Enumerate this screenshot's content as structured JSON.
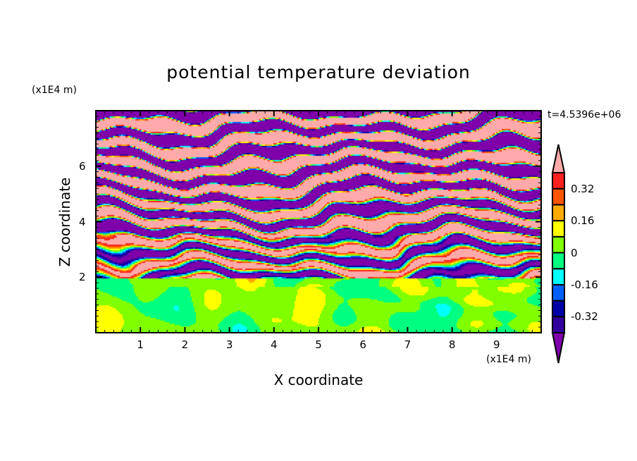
{
  "chart_data": {
    "type": "heatmap",
    "title": "potential temperature deviation",
    "xlabel": "X coordinate",
    "ylabel": "Z coordinate",
    "x_unit": "(x1E4 m)",
    "z_unit": "(x1E4 m)",
    "time_label": "t=4.5396e+06",
    "xlim": [
      0,
      10
    ],
    "ylim": [
      0,
      8
    ],
    "xticks": [
      "1",
      "2",
      "3",
      "4",
      "5",
      "6",
      "7",
      "8",
      "9"
    ],
    "yticks": [
      "2",
      "4",
      "6"
    ],
    "colorbar": {
      "levels": [
        -0.4,
        -0.32,
        -0.24,
        -0.16,
        -0.08,
        0,
        0.08,
        0.16,
        0.24,
        0.32,
        0.4
      ],
      "labels": [
        "0.32",
        "0.16",
        "0",
        "-0.16",
        "-0.32"
      ],
      "label_values": [
        0.32,
        0.16,
        0,
        -0.16,
        -0.32
      ],
      "colors": [
        "#7f00aa",
        "#3300a0",
        "#0000a8",
        "#0060ff",
        "#00ffff",
        "#00ff80",
        "#80ff00",
        "#ffff00",
        "#ffaa00",
        "#ff5500",
        "#ff2020",
        "#ffaaaa"
      ],
      "extend": "both"
    },
    "description_regions": {
      "below_z2": "values near 0 (-0.08 to 0.16)",
      "above_z2": "layered bands alternating between < -0.40 and > 0.40"
    }
  }
}
